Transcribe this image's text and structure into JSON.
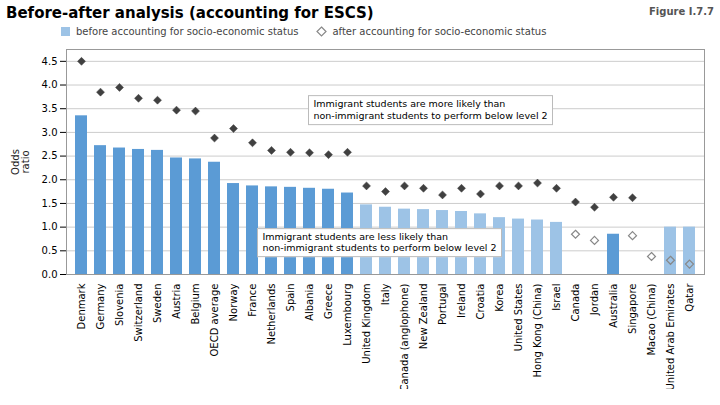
{
  "chart_data": {
    "type": "bar",
    "title": "Before-after analysis (accounting for ESCS)",
    "figure_label": "Figure I.7.7",
    "ylabel": "Odds\nratio",
    "annotations": [
      "Immigrant students are more likely than\nnon-immigrant students to perform below level 2",
      "Immigrant students are less likely than\nnon-immigrant students to perform below level 2"
    ],
    "categories": [
      "Denmark",
      "Germany",
      "Slovenia",
      "Switzerland",
      "Sweden",
      "Austria",
      "Belgium",
      "OECD average",
      "Norway",
      "France",
      "Netherlands",
      "Spain",
      "Albania",
      "Greece",
      "Luxembourg",
      "United Kingdom",
      "Italy",
      "Canada (anglophone)",
      "New Zealand",
      "Portugal",
      "Ireland",
      "Croatia",
      "Korea",
      "United States",
      "Hong Kong (China)",
      "Israel",
      "Canada",
      "Jordan",
      "Australia",
      "Singapore",
      "Macao (China)",
      "United Arab Emirates",
      "Qatar"
    ],
    "series": [
      {
        "name": "before accounting for socio-economic status",
        "type": "bar",
        "color": "#9DC3E6",
        "colors": [
          "#5B9BD5",
          "#5B9BD5",
          "#5B9BD5",
          "#5B9BD5",
          "#5B9BD5",
          "#5B9BD5",
          "#5B9BD5",
          "#5B9BD5",
          "#5B9BD5",
          "#5B9BD5",
          "#5B9BD5",
          "#5B9BD5",
          "#5B9BD5",
          "#5B9BD5",
          "#5B9BD5",
          "#9DC3E6",
          "#9DC3E6",
          "#9DC3E6",
          "#9DC3E6",
          "#9DC3E6",
          "#9DC3E6",
          "#9DC3E6",
          "#9DC3E6",
          "#9DC3E6",
          "#9DC3E6",
          "#9DC3E6",
          null,
          null,
          "#5B9BD5",
          null,
          null,
          "#9DC3E6",
          "#9DC3E6"
        ],
        "values": [
          3.35,
          2.72,
          2.67,
          2.64,
          2.62,
          2.46,
          2.44,
          2.37,
          1.92,
          1.87,
          1.85,
          1.84,
          1.82,
          1.8,
          1.72,
          1.47,
          1.42,
          1.38,
          1.37,
          1.35,
          1.33,
          1.28,
          1.2,
          1.17,
          1.15,
          1.1,
          null,
          null,
          0.85,
          null,
          null,
          1.0,
          1.0
        ]
      },
      {
        "type": "scatter",
        "marker": "diamond",
        "color": "#404040",
        "values": [
          4.5,
          3.85,
          3.95,
          3.72,
          3.68,
          3.47,
          3.45,
          2.88,
          3.08,
          2.78,
          2.62,
          2.58,
          2.57,
          2.53,
          2.58,
          1.87,
          1.75,
          1.87,
          1.82,
          1.68,
          1.82,
          1.7,
          1.87,
          1.87,
          1.93,
          1.82,
          1.53,
          1.42,
          1.63,
          1.62,
          null,
          null,
          null
        ]
      },
      {
        "name": "after accounting for socio-economic status",
        "type": "scatter",
        "marker": "diamond-open",
        "color": "#888888",
        "values": [
          null,
          null,
          null,
          null,
          null,
          null,
          null,
          null,
          null,
          null,
          null,
          null,
          null,
          null,
          null,
          null,
          null,
          null,
          null,
          null,
          null,
          null,
          null,
          null,
          null,
          null,
          0.85,
          0.72,
          null,
          0.82,
          0.38,
          0.3,
          0.22
        ]
      }
    ],
    "ylim": [
      0.0,
      4.75
    ],
    "yticks": [
      {
        "value": 0,
        "label": "0.0"
      },
      0.5,
      {
        "value": 1,
        "label": "1.0"
      },
      1.5,
      {
        "value": 2,
        "label": "2.0"
      },
      2.5,
      {
        "value": 3,
        "label": "3.0"
      },
      3.5,
      {
        "value": 4,
        "label": "4.0"
      },
      4.5
    ],
    "grid": true,
    "legend": "top"
  }
}
